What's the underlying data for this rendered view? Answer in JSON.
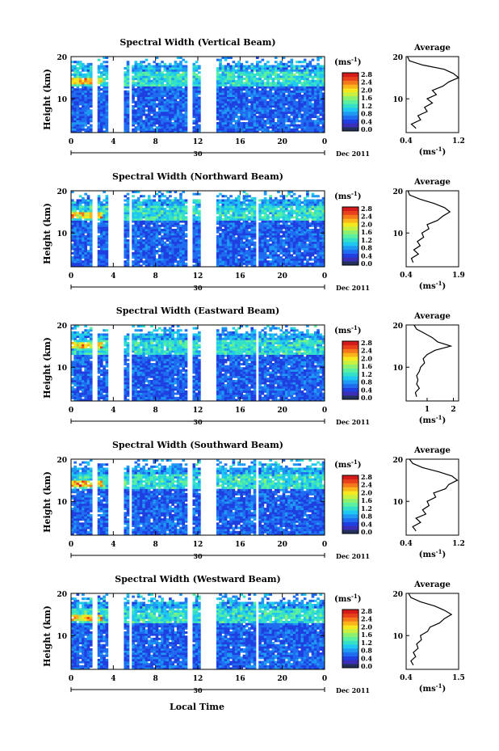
{
  "figure": {
    "xlabel": "Local Time",
    "date_label": "Dec 2011",
    "date_day": "30",
    "ylabel": "Height (km)",
    "colorbar_unit": "(ms",
    "unit_exp": "-1",
    "avg_title": "Average",
    "avg_xunit": "(ms",
    "colors": {
      "scale": [
        "#23305a",
        "#3b2fb8",
        "#1f3fe0",
        "#1f6cf0",
        "#1e9af5",
        "#1ec8f0",
        "#35e0c8",
        "#5af0a0",
        "#8cf070",
        "#c8f040",
        "#f5e81e",
        "#fbb41a",
        "#f5781a",
        "#e8401a",
        "#d41a1a"
      ]
    }
  },
  "chart_data": [
    {
      "type": "heatmap",
      "title": "Spectral Width (Vertical Beam)",
      "x_ticks": [
        "0",
        "4",
        "8",
        "12",
        "16",
        "20",
        "0"
      ],
      "y_ticks": [
        "20",
        "10"
      ],
      "xlim": [
        0,
        24
      ],
      "ylim": [
        2,
        20
      ],
      "colorbar_ticks": [
        "2.8",
        "2.4",
        "2.0",
        "1.6",
        "1.2",
        "0.8",
        "0.4",
        "0.0"
      ],
      "data_gaps_hours": [
        [
          2.0,
          2.4
        ],
        [
          3.6,
          4.9
        ],
        [
          5.5,
          5.8
        ],
        [
          11.0,
          11.4
        ],
        [
          12.3,
          13.7
        ]
      ],
      "enhanced_layers_km": [
        14,
        15
      ],
      "average": {
        "x_ticks": [
          "0.4",
          "1.2"
        ],
        "xlim": [
          0.4,
          1.2
        ],
        "height_km": [
          3,
          4,
          5,
          6,
          7,
          8,
          9,
          10,
          11,
          12,
          13,
          14,
          15,
          16,
          17,
          18,
          19,
          20
        ],
        "value": [
          0.55,
          0.48,
          0.62,
          0.58,
          0.72,
          0.68,
          0.8,
          0.72,
          0.86,
          0.8,
          0.96,
          1.05,
          1.2,
          1.12,
          0.98,
          0.65,
          0.45,
          0.42
        ]
      }
    },
    {
      "type": "heatmap",
      "title": "Spectral Width (Northward Beam)",
      "x_ticks": [
        "0",
        "4",
        "8",
        "12",
        "16",
        "20",
        "0"
      ],
      "y_ticks": [
        "20",
        "10"
      ],
      "xlim": [
        0,
        24
      ],
      "ylim": [
        2,
        20
      ],
      "colorbar_ticks": [
        "2.8",
        "2.4",
        "2.0",
        "1.6",
        "1.2",
        "0.8",
        "0.4",
        "0.0"
      ],
      "data_gaps_hours": [
        [
          2.0,
          2.4
        ],
        [
          3.6,
          4.9
        ],
        [
          5.5,
          5.8
        ],
        [
          11.0,
          11.4
        ],
        [
          12.3,
          13.7
        ],
        [
          17.6,
          17.8
        ]
      ],
      "enhanced_layers_km": [
        14,
        15
      ],
      "average": {
        "x_ticks": [
          "0.4",
          "1.9"
        ],
        "xlim": [
          0.4,
          1.9
        ],
        "height_km": [
          3,
          4,
          5,
          6,
          7,
          8,
          9,
          10,
          11,
          12,
          13,
          14,
          15,
          16,
          17,
          18,
          19,
          20
        ],
        "value": [
          0.6,
          0.55,
          0.75,
          0.62,
          0.8,
          0.72,
          0.9,
          0.85,
          1.05,
          1.0,
          1.3,
          1.45,
          1.65,
          1.5,
          1.2,
          0.8,
          0.5,
          0.45
        ]
      }
    },
    {
      "type": "heatmap",
      "title": "Spectral Width (Eastward Beam)",
      "x_ticks": [
        "0",
        "4",
        "8",
        "12",
        "16",
        "20",
        "0"
      ],
      "y_ticks": [
        "20",
        "10"
      ],
      "xlim": [
        0,
        24
      ],
      "ylim": [
        2,
        20
      ],
      "colorbar_ticks": [
        "2.8",
        "2.4",
        "2.0",
        "1.6",
        "1.2",
        "0.8",
        "0.4",
        "0.0"
      ],
      "data_gaps_hours": [
        [
          2.0,
          2.4
        ],
        [
          3.6,
          4.9
        ],
        [
          5.5,
          5.8
        ],
        [
          11.0,
          11.4
        ],
        [
          12.3,
          13.7
        ],
        [
          17.6,
          17.8
        ]
      ],
      "enhanced_layers_km": [
        15,
        16
      ],
      "average": {
        "x_ticks": [
          "1",
          "2"
        ],
        "xlim": [
          0.2,
          2.2
        ],
        "height_km": [
          3,
          4,
          5,
          6,
          7,
          8,
          9,
          10,
          11,
          12,
          13,
          14,
          15,
          16,
          17,
          18,
          19,
          20
        ],
        "value": [
          0.6,
          0.55,
          0.7,
          0.6,
          0.65,
          0.6,
          0.7,
          0.75,
          0.9,
          0.85,
          1.0,
          1.3,
          1.9,
          1.4,
          1.2,
          0.9,
          0.6,
          0.5
        ]
      }
    },
    {
      "type": "heatmap",
      "title": "Spectral Width (Southward Beam)",
      "x_ticks": [
        "0",
        "4",
        "8",
        "12",
        "16",
        "20",
        "0"
      ],
      "y_ticks": [
        "20",
        "10"
      ],
      "xlim": [
        0,
        24
      ],
      "ylim": [
        2,
        20
      ],
      "colorbar_ticks": [
        "2.8",
        "2.4",
        "2.0",
        "1.6",
        "1.2",
        "0.8",
        "0.4",
        "0.0"
      ],
      "data_gaps_hours": [
        [
          2.0,
          2.4
        ],
        [
          3.6,
          4.9
        ],
        [
          5.5,
          5.8
        ],
        [
          11.0,
          11.4
        ],
        [
          12.3,
          13.7
        ],
        [
          17.6,
          17.8
        ]
      ],
      "enhanced_layers_km": [
        14,
        15
      ],
      "average": {
        "x_ticks": [
          "0.4",
          "1.2"
        ],
        "xlim": [
          0.4,
          1.2
        ],
        "height_km": [
          3,
          4,
          5,
          6,
          7,
          8,
          9,
          10,
          11,
          12,
          13,
          14,
          15,
          16,
          17,
          18,
          19,
          20
        ],
        "value": [
          0.55,
          0.5,
          0.62,
          0.55,
          0.7,
          0.65,
          0.75,
          0.72,
          0.85,
          0.82,
          1.0,
          1.05,
          1.18,
          1.1,
          0.9,
          0.65,
          0.5,
          0.45
        ]
      }
    },
    {
      "type": "heatmap",
      "title": "Spectral Width (Westward Beam)",
      "x_ticks": [
        "0",
        "4",
        "8",
        "12",
        "16",
        "20",
        "0"
      ],
      "y_ticks": [
        "20",
        "10"
      ],
      "xlim": [
        0,
        24
      ],
      "ylim": [
        2,
        20
      ],
      "colorbar_ticks": [
        "2.8",
        "2.4",
        "2.0",
        "1.6",
        "1.2",
        "0.8",
        "0.4",
        "0.0"
      ],
      "data_gaps_hours": [
        [
          2.0,
          2.4
        ],
        [
          3.6,
          4.9
        ],
        [
          5.5,
          5.8
        ],
        [
          11.0,
          11.4
        ],
        [
          12.3,
          13.7
        ],
        [
          17.6,
          17.8
        ]
      ],
      "enhanced_layers_km": [
        14,
        15
      ],
      "average": {
        "x_ticks": [
          "0.4",
          "1.5"
        ],
        "xlim": [
          0.4,
          1.5
        ],
        "height_km": [
          3,
          4,
          5,
          6,
          7,
          8,
          9,
          10,
          11,
          12,
          13,
          14,
          15,
          16,
          17,
          18,
          19,
          20
        ],
        "value": [
          0.55,
          0.5,
          0.6,
          0.55,
          0.65,
          0.62,
          0.72,
          0.7,
          0.85,
          0.9,
          1.1,
          1.2,
          1.35,
          1.2,
          1.0,
          0.7,
          0.5,
          0.45
        ]
      }
    }
  ]
}
